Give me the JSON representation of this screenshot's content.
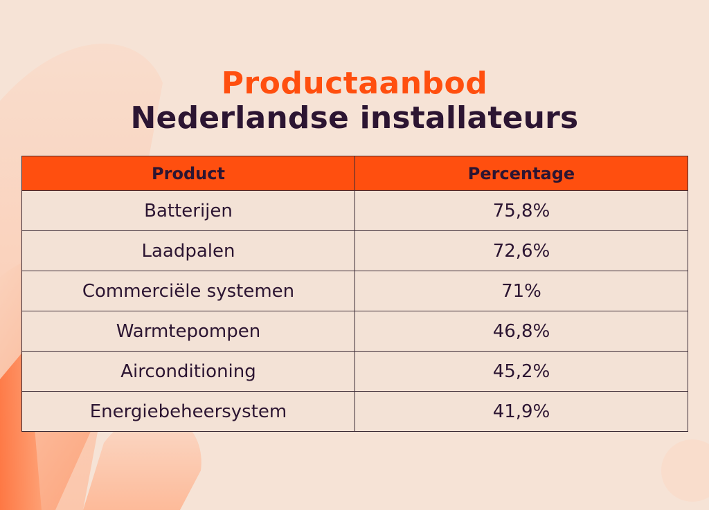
{
  "title": {
    "line1": "Productaanbod",
    "line2": "Nederlandse installateurs"
  },
  "colors": {
    "background": "#f6e3d6",
    "accent": "#ff4f0f",
    "text_dark": "#2c1532",
    "cell_bg": "#f3e2d6"
  },
  "chart_data": {
    "type": "table",
    "title": "Productaanbod Nederlandse installateurs",
    "columns": [
      "Product",
      "Percentage"
    ],
    "rows": [
      {
        "product": "Batterijen",
        "percentage": "75,8%"
      },
      {
        "product": "Laadpalen",
        "percentage": "72,6%"
      },
      {
        "product": "Commerciële systemen",
        "percentage": "71%"
      },
      {
        "product": "Warmtepompen",
        "percentage": "46,8%"
      },
      {
        "product": "Airconditioning",
        "percentage": "45,2%"
      },
      {
        "product": "Energiebeheersystem",
        "percentage": "41,9%"
      }
    ]
  }
}
